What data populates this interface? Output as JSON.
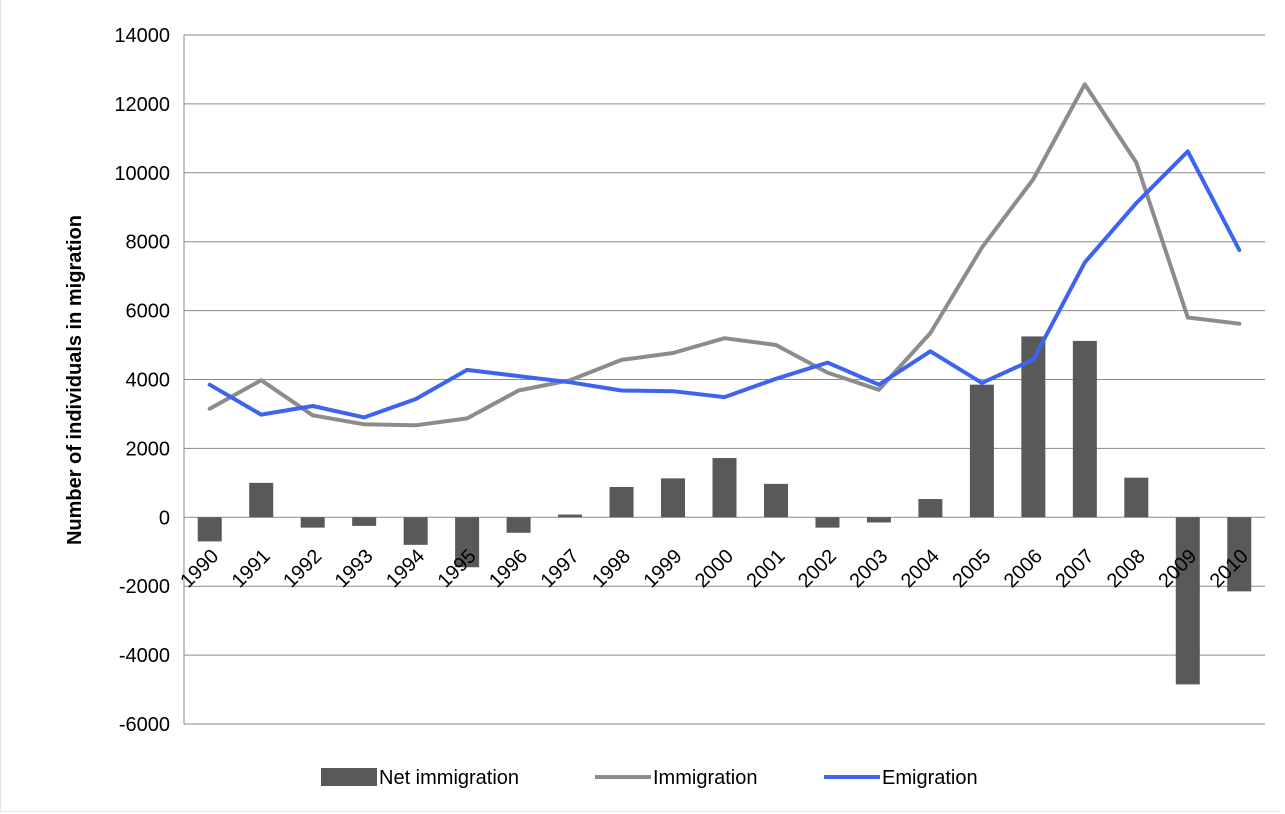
{
  "chart_data": {
    "type": "bar+line",
    "title": "",
    "xlabel": "",
    "ylabel": "Number of individuals in migration",
    "ylim": [
      -6000,
      14000
    ],
    "yticks": [
      -6000,
      -4000,
      -2000,
      0,
      2000,
      4000,
      6000,
      8000,
      10000,
      12000,
      14000
    ],
    "y_tick_labels": [
      "-6000",
      "-4000",
      "-2000",
      "0",
      "2000",
      "4000",
      "6000",
      "8000",
      "10000",
      "12000",
      "14000"
    ],
    "grid": "horizontal",
    "legend_position": "bottom",
    "categories": [
      "1990",
      "1991",
      "1992",
      "1993",
      "1994",
      "1995",
      "1996",
      "1997",
      "1998",
      "1999",
      "2000",
      "2001",
      "2002",
      "2003",
      "2004",
      "2005",
      "2006",
      "2007",
      "2008",
      "2009",
      "2010"
    ],
    "series": [
      {
        "name": "Net immigration",
        "type": "bar",
        "color": "#595959",
        "values": [
          -700,
          1000,
          -300,
          -250,
          -800,
          -1450,
          -450,
          80,
          880,
          1130,
          1720,
          970,
          -300,
          -150,
          530,
          3850,
          5250,
          5120,
          1150,
          -4850,
          -2150
        ]
      },
      {
        "name": "Immigration",
        "type": "line",
        "color": "#8c8c8c",
        "values": [
          3150,
          3980,
          2960,
          2700,
          2670,
          2870,
          3680,
          3980,
          4570,
          4770,
          5200,
          5000,
          4200,
          3700,
          5350,
          7830,
          9820,
          12570,
          10300,
          5800,
          5620
        ]
      },
      {
        "name": "Emigration",
        "type": "line",
        "color": "#3c64f0",
        "values": [
          3850,
          2980,
          3230,
          2900,
          3430,
          4280,
          4100,
          3920,
          3680,
          3660,
          3490,
          4020,
          4490,
          3850,
          4820,
          3900,
          4580,
          7400,
          9120,
          10620,
          7760
        ]
      }
    ]
  }
}
